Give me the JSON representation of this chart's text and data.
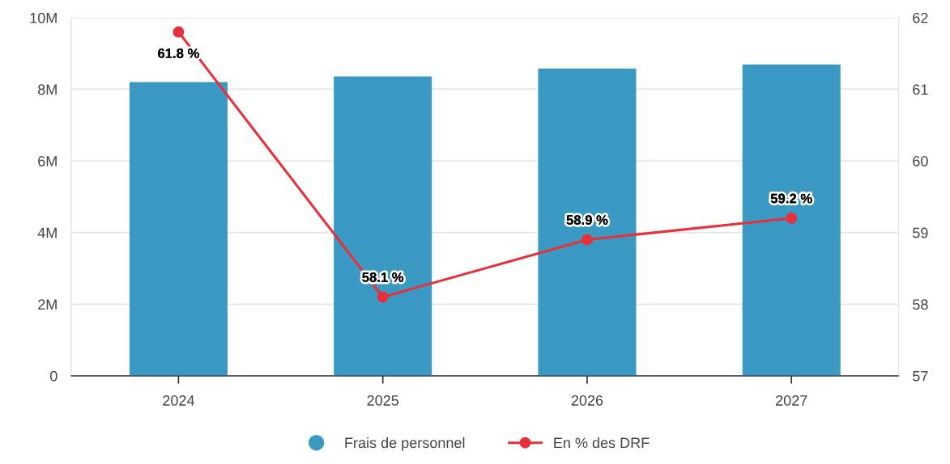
{
  "chart_data": {
    "type": "bar",
    "categories": [
      "2024",
      "2025",
      "2026",
      "2027"
    ],
    "series": [
      {
        "name": "Frais de personnel",
        "color": "#3a9ac4",
        "values": [
          8200000,
          8360000,
          8580000,
          8690000
        ]
      },
      {
        "name": "En % des DRF",
        "type": "line",
        "axis": "y2",
        "color": "#e8303a",
        "values": [
          61.8,
          58.1,
          58.9,
          59.2
        ],
        "value_labels": [
          "61.8 %",
          "58.1 %",
          "58.9 %",
          "59.2 %"
        ]
      }
    ],
    "ylim": [
      0,
      10000000
    ],
    "yticks": [
      0,
      {
        "value": 2000000,
        "label": "2M"
      },
      {
        "value": 4000000,
        "label": "4M"
      },
      {
        "value": 6000000,
        "label": "6M"
      },
      {
        "value": 8000000,
        "label": "8M"
      },
      {
        "value": 10000000,
        "label": "10M"
      }
    ],
    "y2lim": [
      57,
      62
    ],
    "y2ticks": [
      57,
      58,
      59,
      60,
      61,
      62
    ],
    "marker": "circle",
    "line_style": "solid",
    "grid": "y",
    "legend": "bottom"
  }
}
